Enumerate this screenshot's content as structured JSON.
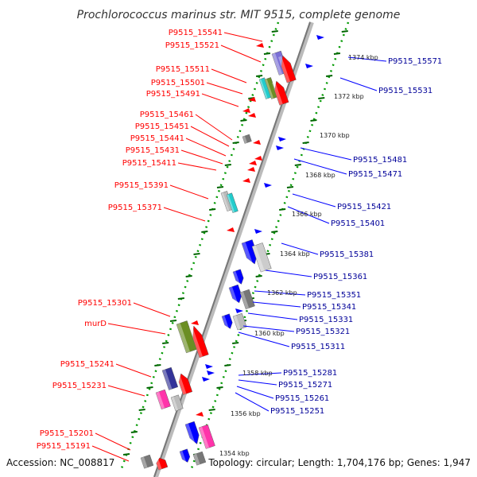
{
  "title": "Prochlorococcus marinus str. MIT 9515, complete genome",
  "footer": {
    "accession": "Accession: NC_008817",
    "topology": "Topology: circular; Length: 1,704,176 bp; Genes: 1,947"
  },
  "colors": {
    "forward": "#ff0000",
    "reverse": "#0000ff",
    "left_label": "#cc0000",
    "right_label": "#000099",
    "backbone": "#888888",
    "dotted_guide": "#009900",
    "tick": "#006600"
  },
  "kbp_ticks": [
    "1374 kbp",
    "1372 kbp",
    "1370 kbp",
    "1368 kbp",
    "1366 kbp",
    "1364 kbp",
    "1362 kbp",
    "1360 kbp",
    "1358 kbp",
    "1356 kbp",
    "1354 kbp"
  ],
  "left_labels": [
    "P9515_15541",
    "P9515_15521",
    "P9515_15511",
    "P9515_15501",
    "P9515_15491",
    "P9515_15461",
    "P9515_15451",
    "P9515_15441",
    "P9515_15431",
    "P9515_15411",
    "P9515_15391",
    "P9515_15371",
    "P9515_15301",
    "murD",
    "P9515_15241",
    "P9515_15231",
    "P9515_15201",
    "P9515_15191"
  ],
  "right_labels": [
    "P9515_15571",
    "P9515_15531",
    "P9515_15481",
    "P9515_15471",
    "P9515_15421",
    "P9515_15401",
    "P9515_15381",
    "P9515_15361",
    "P9515_15351",
    "P9515_15341",
    "P9515_15331",
    "P9515_15321",
    "P9515_15311",
    "P9515_15281",
    "P9515_15271",
    "P9515_15261",
    "P9515_15251"
  ]
}
